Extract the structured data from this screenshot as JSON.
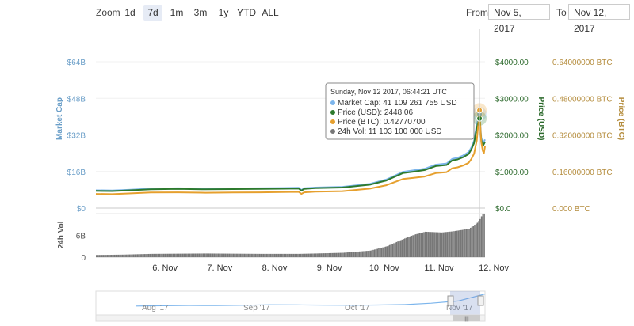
{
  "toolbar": {
    "zoom_label": "Zoom",
    "zoom_buttons": [
      "1d",
      "7d",
      "1m",
      "3m",
      "1y",
      "YTD",
      "ALL"
    ],
    "active_zoom": "7d",
    "from_label": "From",
    "from_value": "Nov 5, 2017",
    "to_label": "To",
    "to_value": "Nov 12, 2017"
  },
  "colors": {
    "market_cap": "#7cb5ec",
    "price_usd": "#2d7a2d",
    "price_btc": "#e6a02e",
    "volume": "#777777",
    "axis_mcap": "#6a9ec8",
    "axis_usd": "#2d6a2d",
    "axis_btc": "#b58d3e"
  },
  "chart_data": {
    "type": "line",
    "x_range": [
      "Nov 5, 2017",
      "Nov 12, 2017"
    ],
    "x_tick_labels": [
      "6. Nov",
      "7. Nov",
      "8. Nov",
      "9. Nov",
      "10. Nov",
      "11. Nov",
      "12. Nov"
    ],
    "x_ticks_days": [
      1,
      2,
      3,
      4,
      5,
      6,
      7
    ],
    "axes": {
      "market_cap": {
        "label": "Market Cap",
        "ticks": [
          "$0",
          "$16B",
          "$32B",
          "$48B",
          "$64B"
        ],
        "range": [
          0,
          64
        ]
      },
      "price_usd": {
        "label": "Price (USD)",
        "ticks": [
          "$0.0",
          "$1000.00",
          "$2000.00",
          "$3000.00",
          "$4000.00"
        ],
        "range": [
          0,
          4000
        ]
      },
      "price_btc": {
        "label": "Price (BTC)",
        "ticks": [
          "0.000 BTC",
          "0.16000000 BTC",
          "0.32000000 BTC",
          "0.48000000 BTC",
          "0.64000000 BTC"
        ],
        "range": [
          0,
          0.64
        ]
      },
      "volume": {
        "label": "24h Vol",
        "ticks": [
          "0",
          "6B"
        ],
        "range": [
          0,
          12
        ]
      }
    },
    "x_days": [
      0,
      0.3,
      0.6,
      1,
      1.5,
      2,
      2.5,
      3,
      3.4,
      3.7,
      3.75,
      3.8,
      4,
      4.5,
      5,
      5.3,
      5.6,
      5.8,
      6,
      6.2,
      6.4,
      6.5,
      6.6,
      6.7,
      6.8,
      6.85,
      6.9,
      6.95,
      7.0,
      7.03,
      7.06,
      7.08,
      7.1
    ],
    "series": [
      {
        "name": "Market Cap",
        "axis": "market_cap",
        "unit": "B USD",
        "values": [
          7.8,
          7.7,
          8.0,
          8.5,
          8.7,
          8.5,
          8.6,
          8.7,
          8.8,
          8.9,
          7.9,
          8.7,
          9.0,
          9.3,
          10.6,
          12.5,
          15.8,
          16.5,
          17.2,
          19.0,
          19.5,
          21.5,
          22.0,
          23.0,
          24.5,
          26.5,
          29.5,
          36.5,
          41.1,
          31.0,
          28.0,
          29.0,
          30.0
        ]
      },
      {
        "name": "Price (USD)",
        "axis": "price_usd",
        "unit": "USD",
        "values": [
          470,
          465,
          485,
          515,
          525,
          512,
          518,
          525,
          530,
          536,
          475,
          525,
          545,
          562,
          640,
          755,
          955,
          995,
          1040,
          1148,
          1178,
          1300,
          1330,
          1390,
          1480,
          1600,
          1780,
          2200,
          2448.06,
          1870,
          1690,
          1750,
          1810
        ]
      },
      {
        "name": "Price (BTC)",
        "axis": "price_btc",
        "unit": "BTC",
        "values": [
          0.062,
          0.061,
          0.064,
          0.068,
          0.069,
          0.067,
          0.068,
          0.069,
          0.07,
          0.071,
          0.062,
          0.069,
          0.072,
          0.074,
          0.085,
          0.1,
          0.127,
          0.132,
          0.138,
          0.153,
          0.157,
          0.174,
          0.178,
          0.186,
          0.198,
          0.214,
          0.238,
          0.295,
          0.4277,
          0.29,
          0.25,
          0.24,
          0.27
        ]
      }
    ],
    "volume": {
      "name": "24h Vol",
      "x_days": [
        0,
        0.5,
        1,
        2,
        3,
        3.7,
        4,
        4.5,
        5,
        5.3,
        5.6,
        5.8,
        6,
        6.3,
        6.5,
        6.8,
        6.95,
        7.0,
        7.05,
        7.1
      ],
      "values": [
        0.6,
        0.7,
        0.9,
        1.0,
        0.9,
        0.9,
        1.0,
        1.2,
        1.8,
        3.0,
        5.0,
        6.2,
        7.0,
        6.8,
        7.1,
        7.8,
        9.5,
        10.5,
        12.0,
        12.0
      ]
    },
    "tooltip": {
      "title": "Sunday, Nov 12 2017, 06:44:21 UTC",
      "rows": [
        {
          "series": "Market Cap",
          "text": "Market Cap: 41 109 261 755 USD",
          "color": "#7cb5ec"
        },
        {
          "series": "Price (USD)",
          "text": "Price (USD): 2448.06",
          "color": "#2d7a2d"
        },
        {
          "series": "Price (BTC)",
          "text": "Price (BTC): 0.42770700",
          "color": "#e6a02e"
        },
        {
          "series": "24h Vol",
          "text": "24h Vol: 11 103 100 000 USD",
          "color": "#777777"
        }
      ]
    },
    "navigator": {
      "labels": [
        "Aug '17",
        "Sep '17",
        "Oct '17",
        "Nov '17"
      ],
      "label_months": [
        0,
        1,
        2,
        3
      ],
      "values": [
        9,
        9.5,
        10,
        9.8,
        10.2,
        11,
        10.8,
        10.5,
        10.3,
        10.6,
        11.2,
        13.5,
        17,
        28
      ],
      "handle_glyph": "|||"
    }
  }
}
